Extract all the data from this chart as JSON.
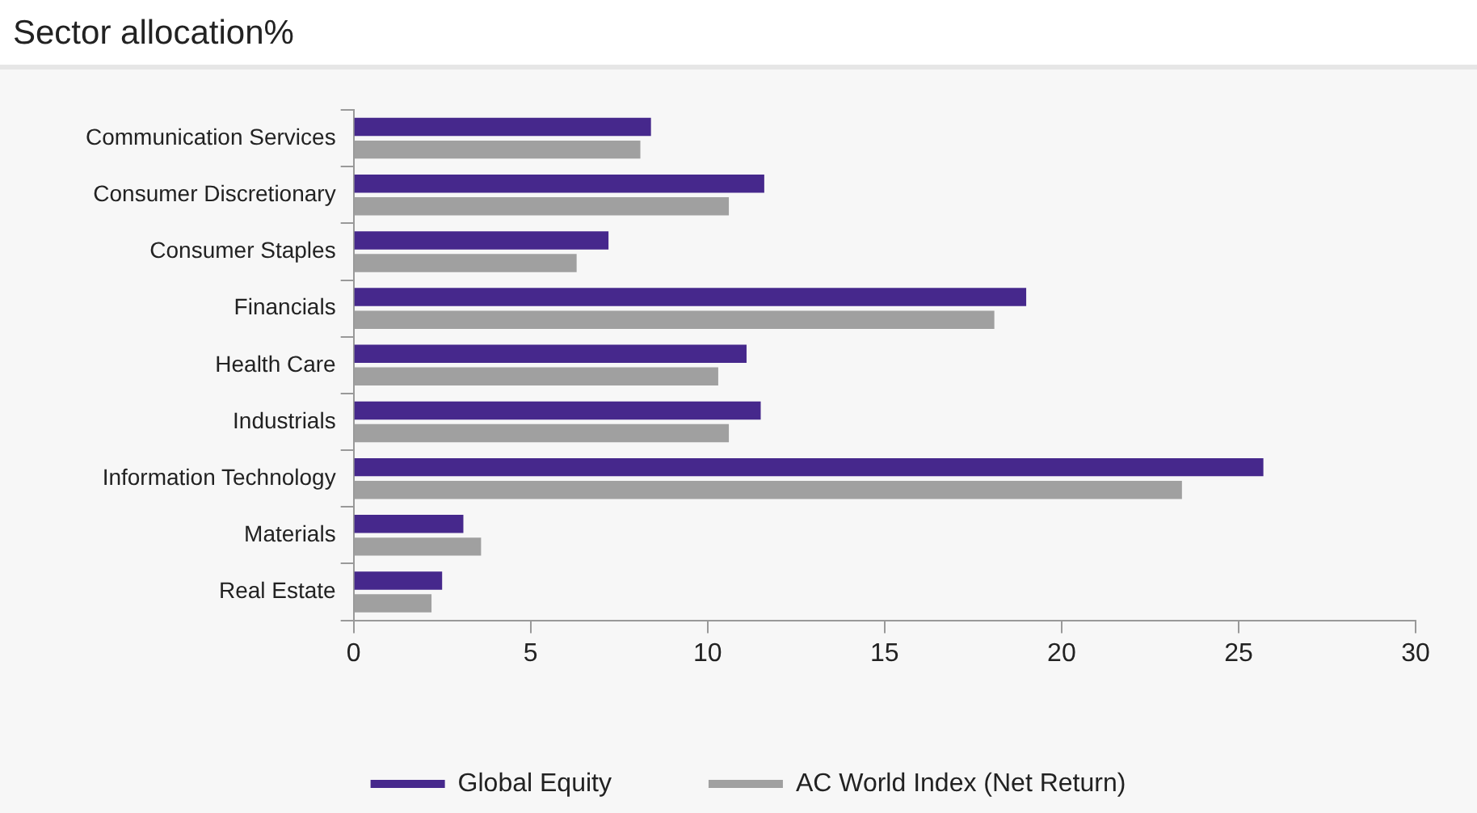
{
  "chart_data": {
    "type": "bar",
    "orientation": "horizontal",
    "title": "Sector allocation%",
    "categories": [
      "Communication Services",
      "Consumer Discretionary",
      "Consumer Staples",
      "Financials",
      "Health Care",
      "Industrials",
      "Information Technology",
      "Materials",
      "Real Estate"
    ],
    "series": [
      {
        "name": "Global Equity",
        "color": "#46288c",
        "values": [
          8.4,
          11.6,
          7.2,
          19.0,
          11.1,
          11.5,
          25.7,
          3.1,
          2.5
        ]
      },
      {
        "name": "AC World Index (Net Return)",
        "color": "#a0a0a0",
        "values": [
          8.1,
          10.6,
          6.3,
          18.1,
          10.3,
          10.6,
          23.4,
          3.6,
          2.2
        ]
      }
    ],
    "xlim": [
      0,
      30
    ],
    "xticks": [
      0,
      5,
      10,
      15,
      20,
      25,
      30
    ],
    "grid": false,
    "legend": "bottom"
  }
}
